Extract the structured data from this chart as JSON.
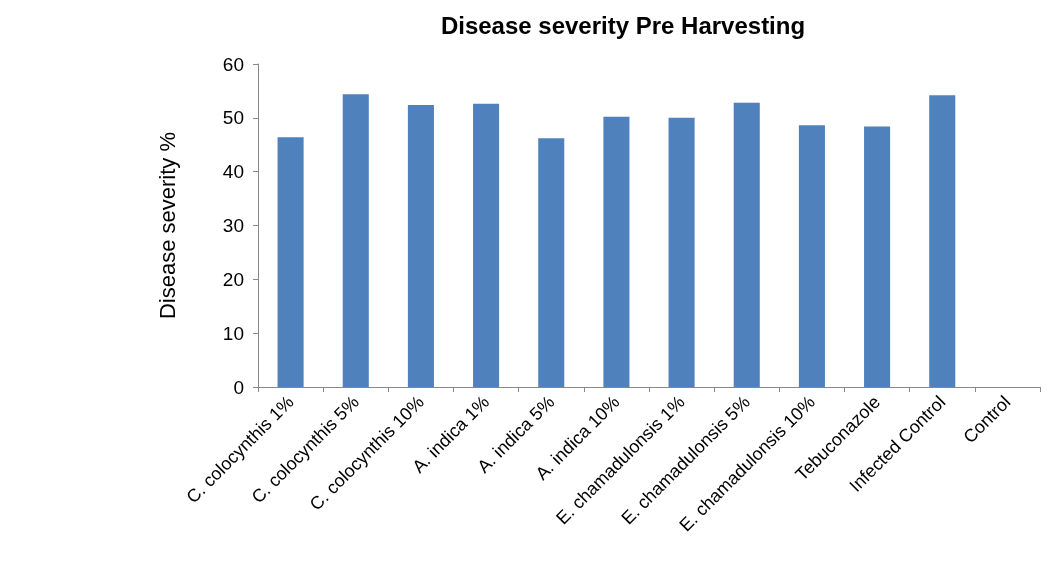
{
  "chart_data": {
    "type": "bar",
    "title": "Disease severity Pre Harvesting",
    "ylabel": "Disease severity %",
    "categories": [
      "C. colocynthis 1%",
      "C. colocynthis 5%",
      "C. colocynthis 10%",
      "A. indica 1%",
      "A. indica 5%",
      "A. indica 10%",
      "E. chamadulonsis 1%",
      "E. chamadulonsis 5%",
      "E. chamadulonsis 10%",
      "Tebuconazole",
      "Infected Control",
      "Control"
    ],
    "values": [
      46.4,
      54.4,
      52.4,
      52.6,
      46.2,
      50.2,
      50.0,
      52.8,
      48.6,
      48.4,
      54.2,
      0
    ],
    "color": "#4f81bd",
    "ylim": [
      0,
      60
    ],
    "yticks": [
      0,
      10,
      20,
      30,
      40,
      50,
      60
    ],
    "grid": false
  }
}
